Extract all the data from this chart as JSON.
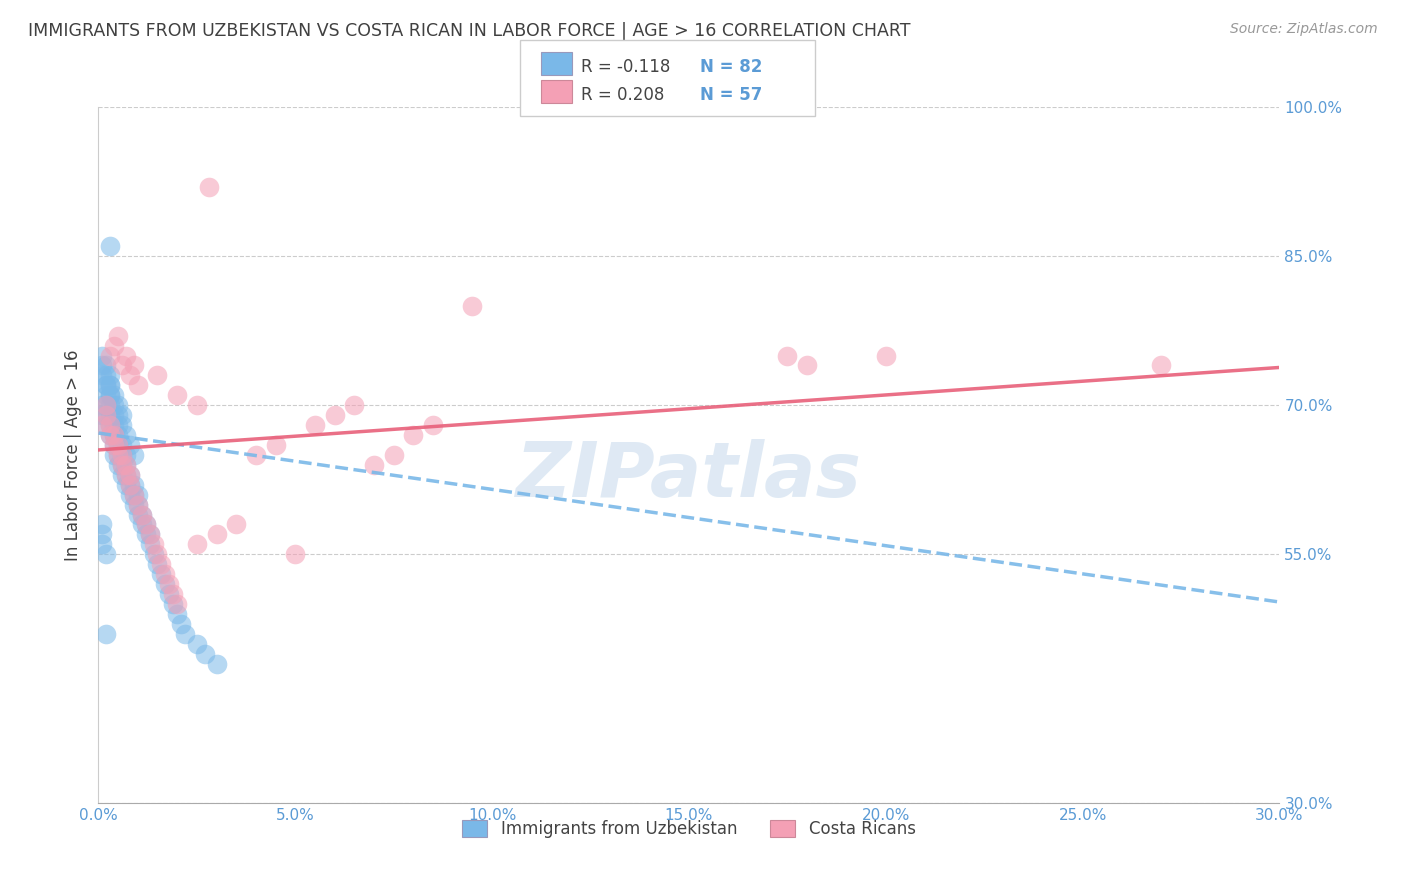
{
  "title": "IMMIGRANTS FROM UZBEKISTAN VS COSTA RICAN IN LABOR FORCE | AGE > 16 CORRELATION CHART",
  "source": "Source: ZipAtlas.com",
  "ylabel": "In Labor Force | Age > 16",
  "watermark": "ZIPatlas",
  "xlim": [
    0.0,
    0.3
  ],
  "ylim": [
    0.3,
    1.0
  ],
  "xticks": [
    0.0,
    0.05,
    0.1,
    0.15,
    0.2,
    0.25,
    0.3
  ],
  "yticks": [
    0.3,
    0.55,
    0.7,
    0.85,
    1.0
  ],
  "legend1_label": "Immigrants from Uzbekistan",
  "legend2_label": "Costa Ricans",
  "R1": "-0.118",
  "N1": "82",
  "R2": "0.208",
  "N2": "57",
  "color1": "#7ab8e8",
  "color2": "#f4a0b5",
  "line1_color": "#7ab8e8",
  "line2_color": "#e8607a",
  "background_color": "#ffffff",
  "grid_color": "#cccccc",
  "title_color": "#404040",
  "axis_color": "#5b9bd5",
  "uzbek_x": [
    0.001,
    0.001,
    0.002,
    0.002,
    0.002,
    0.002,
    0.002,
    0.003,
    0.003,
    0.003,
    0.003,
    0.003,
    0.003,
    0.003,
    0.004,
    0.004,
    0.004,
    0.004,
    0.004,
    0.005,
    0.005,
    0.005,
    0.005,
    0.005,
    0.006,
    0.006,
    0.006,
    0.006,
    0.007,
    0.007,
    0.007,
    0.007,
    0.008,
    0.008,
    0.008,
    0.009,
    0.009,
    0.009,
    0.01,
    0.01,
    0.01,
    0.011,
    0.011,
    0.012,
    0.012,
    0.013,
    0.013,
    0.014,
    0.015,
    0.016,
    0.017,
    0.018,
    0.019,
    0.02,
    0.021,
    0.022,
    0.025,
    0.027,
    0.03,
    0.001,
    0.001,
    0.001,
    0.002,
    0.002,
    0.002,
    0.003,
    0.003,
    0.004,
    0.004,
    0.005,
    0.005,
    0.006,
    0.006,
    0.007,
    0.008,
    0.009,
    0.001,
    0.001,
    0.001,
    0.002,
    0.003,
    0.002
  ],
  "uzbek_y": [
    0.69,
    0.7,
    0.68,
    0.69,
    0.7,
    0.71,
    0.72,
    0.67,
    0.68,
    0.69,
    0.7,
    0.71,
    0.72,
    0.73,
    0.65,
    0.66,
    0.67,
    0.68,
    0.69,
    0.64,
    0.65,
    0.66,
    0.67,
    0.68,
    0.63,
    0.64,
    0.65,
    0.66,
    0.62,
    0.63,
    0.64,
    0.65,
    0.61,
    0.62,
    0.63,
    0.6,
    0.61,
    0.62,
    0.59,
    0.6,
    0.61,
    0.58,
    0.59,
    0.57,
    0.58,
    0.56,
    0.57,
    0.55,
    0.54,
    0.53,
    0.52,
    0.51,
    0.5,
    0.49,
    0.48,
    0.47,
    0.46,
    0.45,
    0.44,
    0.73,
    0.74,
    0.75,
    0.72,
    0.73,
    0.74,
    0.71,
    0.72,
    0.7,
    0.71,
    0.69,
    0.7,
    0.68,
    0.69,
    0.67,
    0.66,
    0.65,
    0.56,
    0.57,
    0.58,
    0.55,
    0.86,
    0.47
  ],
  "costa_x": [
    0.001,
    0.002,
    0.002,
    0.003,
    0.003,
    0.004,
    0.004,
    0.005,
    0.005,
    0.006,
    0.006,
    0.007,
    0.007,
    0.008,
    0.008,
    0.009,
    0.01,
    0.011,
    0.012,
    0.013,
    0.014,
    0.015,
    0.016,
    0.017,
    0.018,
    0.019,
    0.02,
    0.025,
    0.03,
    0.035,
    0.04,
    0.045,
    0.05,
    0.055,
    0.06,
    0.065,
    0.07,
    0.075,
    0.08,
    0.085,
    0.003,
    0.004,
    0.005,
    0.006,
    0.007,
    0.008,
    0.009,
    0.01,
    0.015,
    0.02,
    0.025,
    0.095,
    0.175,
    0.18,
    0.2,
    0.27,
    0.028
  ],
  "costa_y": [
    0.68,
    0.69,
    0.7,
    0.67,
    0.68,
    0.66,
    0.67,
    0.65,
    0.66,
    0.64,
    0.65,
    0.63,
    0.64,
    0.62,
    0.63,
    0.61,
    0.6,
    0.59,
    0.58,
    0.57,
    0.56,
    0.55,
    0.54,
    0.53,
    0.52,
    0.51,
    0.5,
    0.56,
    0.57,
    0.58,
    0.65,
    0.66,
    0.55,
    0.68,
    0.69,
    0.7,
    0.64,
    0.65,
    0.67,
    0.68,
    0.75,
    0.76,
    0.77,
    0.74,
    0.75,
    0.73,
    0.74,
    0.72,
    0.73,
    0.71,
    0.7,
    0.8,
    0.75,
    0.74,
    0.75,
    0.74,
    0.92
  ],
  "line1_x0": 0.0,
  "line1_y0": 0.672,
  "line1_x1": 0.3,
  "line1_y1": 0.502,
  "line2_x0": 0.0,
  "line2_y0": 0.655,
  "line2_x1": 0.3,
  "line2_y1": 0.738
}
